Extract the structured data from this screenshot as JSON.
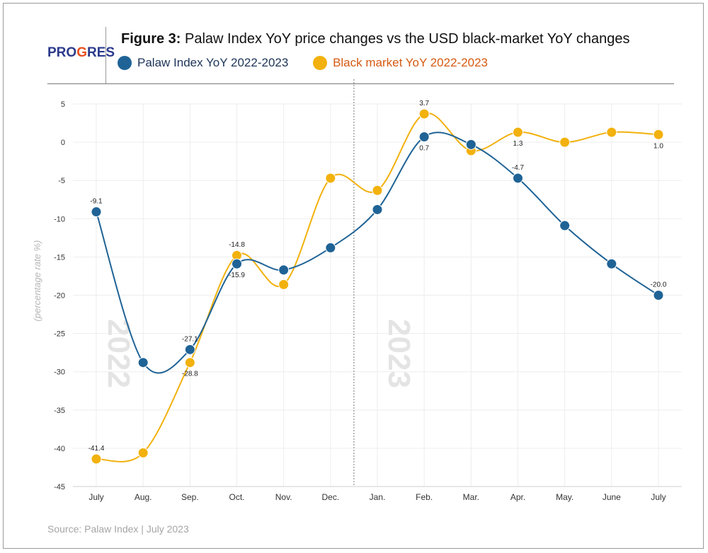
{
  "header": {
    "logo": {
      "text_main": "PRO",
      "text_accent": "G",
      "text_end": "RES"
    },
    "title_bold": "Figure 3:",
    "title_rest": " Palaw Index YoY price changes vs the USD black-market YoY changes"
  },
  "source": "Source: Palaw Index  |  July 2023",
  "colors": {
    "palaw": "#1f6396",
    "black_market": "#f2b10d",
    "black_market_legend_text": "#d65a12",
    "palaw_legend_text": "#1d3557"
  },
  "chart_data": {
    "type": "line",
    "title": "Palaw Index YoY price changes vs the USD black-market YoY changes",
    "ylabel": "(percentage rate %)",
    "xlabel": "",
    "categories": [
      "July",
      "Aug.",
      "Sep.",
      "Oct.",
      "Nov.",
      "Dec.",
      "Jan.",
      "Feb.",
      "Mar.",
      "Apr.",
      "May.",
      "June",
      "July"
    ],
    "ylim": [
      -45,
      5
    ],
    "yticks": [
      5,
      0,
      -5,
      -10,
      -15,
      -20,
      -25,
      -30,
      -35,
      -40,
      -45
    ],
    "year_marks": [
      {
        "label": "2022",
        "category_index": 0
      },
      {
        "label": "2023",
        "category_index": 6
      }
    ],
    "divider_between": [
      5,
      6
    ],
    "grid": true,
    "legend_position": "top-left",
    "series": [
      {
        "name": "Palaw Index YoY 2022-2023",
        "color": "#1f6396",
        "values": [
          -9.1,
          -28.8,
          -27.1,
          -15.9,
          -16.7,
          -13.8,
          -8.8,
          0.7,
          -0.3,
          -4.7,
          -10.9,
          -15.9,
          -20.0
        ],
        "labels": [
          {
            "index": 0,
            "text": "-9.1",
            "pos": "above"
          },
          {
            "index": 2,
            "text": "-27.1",
            "pos": "above"
          },
          {
            "index": 3,
            "text": "-15.9",
            "pos": "below"
          },
          {
            "index": 7,
            "text": "0.7",
            "pos": "below"
          },
          {
            "index": 9,
            "text": "-4.7",
            "pos": "above"
          },
          {
            "index": 12,
            "text": "-20.0",
            "pos": "above"
          }
        ]
      },
      {
        "name": "Black market YoY 2022-2023",
        "color": "#f2b10d",
        "values": [
          -41.4,
          -40.6,
          -28.8,
          -14.8,
          -18.6,
          -4.7,
          -6.3,
          3.7,
          -1.1,
          1.3,
          0.0,
          1.3,
          1.0
        ],
        "labels": [
          {
            "index": 0,
            "text": "-41.4",
            "pos": "above"
          },
          {
            "index": 2,
            "text": "-28.8",
            "pos": "below"
          },
          {
            "index": 3,
            "text": "-14.8",
            "pos": "above"
          },
          {
            "index": 7,
            "text": "3.7",
            "pos": "above"
          },
          {
            "index": 9,
            "text": "1.3",
            "pos": "below"
          },
          {
            "index": 12,
            "text": "1.0",
            "pos": "below"
          }
        ]
      }
    ]
  }
}
